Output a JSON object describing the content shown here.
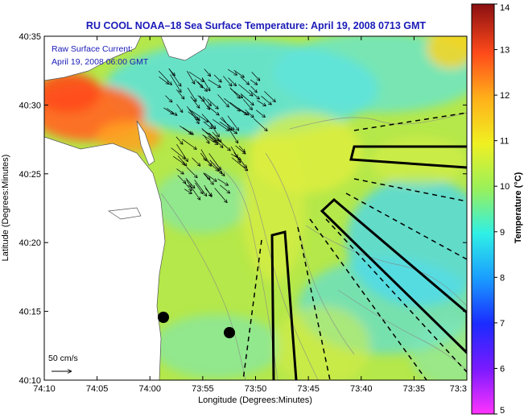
{
  "title": "RU COOL  NOAA–18  Sea Surface Temperature:  April 19, 2008 0713 GMT",
  "axes": {
    "xlabel": "Longitude (Degrees:Minutes)",
    "ylabel": "Latitude (Degrees:Minutes)",
    "x_ticks": [
      "74:10",
      "74:05",
      "74:00",
      "73:55",
      "73:50",
      "73:45",
      "73:40",
      "73:35",
      "73:3"
    ],
    "y_ticks": [
      "40:35",
      "40:30",
      "40:25",
      "40:20",
      "40:15",
      "40:10"
    ]
  },
  "annotation": {
    "line1": "Raw Surface Current:",
    "line2": "April 19, 2008 06:00 GMT"
  },
  "scale_label": "50 cm/s",
  "colorbar": {
    "label": "Temperature (°C)",
    "ticks": [
      "14",
      "13",
      "12",
      "11",
      "10",
      "9",
      "8",
      "7",
      "6",
      "5"
    ],
    "min": 5,
    "max": 14
  },
  "colors": {
    "title": "#1a1ab8",
    "ocean_base": "#b5e84a",
    "land": "#ffffff",
    "cold": "#3fd6ff",
    "warm": "#ff7a22"
  },
  "chart_data": {
    "type": "heatmap",
    "title": "RU COOL  NOAA–18  Sea Surface Temperature:  April 19, 2008 0713 GMT",
    "xlabel": "Longitude (Degrees:Minutes)",
    "ylabel": "Latitude (Degrees:Minutes)",
    "xlim": [
      "74:10",
      "73:30"
    ],
    "ylim": [
      "40:10",
      "40:35"
    ],
    "colorbar_range": [
      5,
      14
    ],
    "colorbar_label": "Temperature (°C)"
  }
}
